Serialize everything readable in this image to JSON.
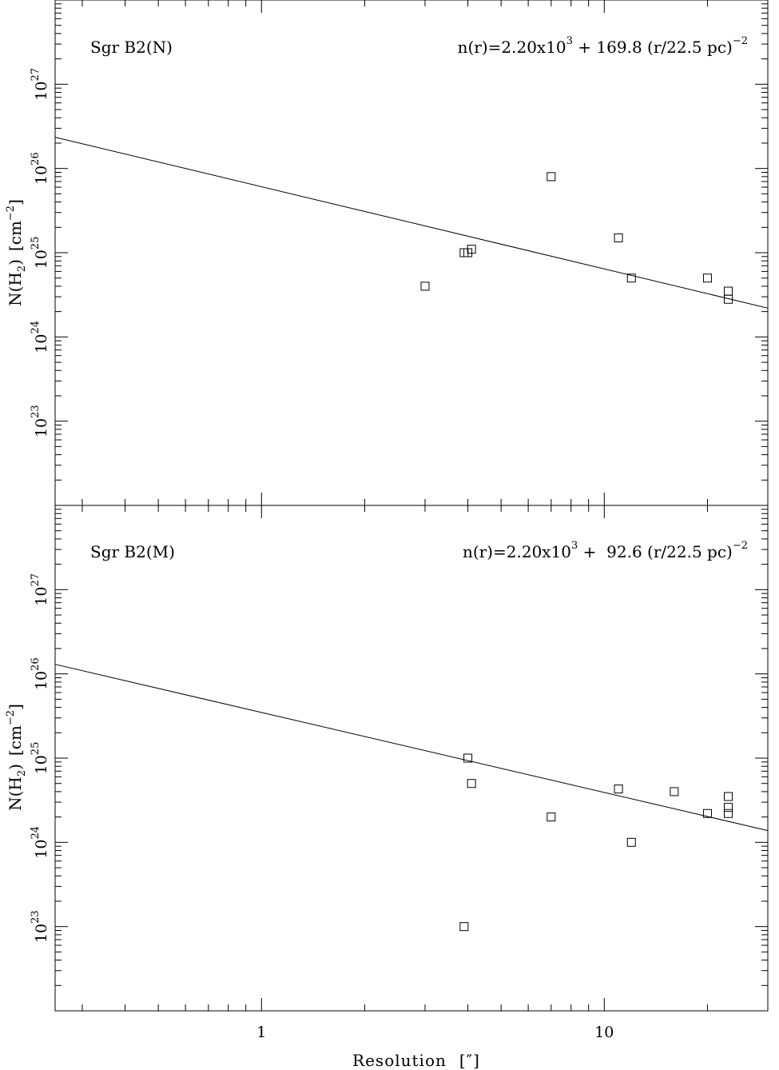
{
  "figure": {
    "xlabel": "Resolution",
    "xlabel_unit": "[″]",
    "ylabel_main": "N(H",
    "ylabel_sub": "2",
    "ylabel_close": ")",
    "ylabel_unit": "[cm",
    "ylabel_unit_sup": "−2",
    "ylabel_unit_close": "]"
  },
  "chart_data": [
    {
      "type": "scatter",
      "panel": "top",
      "label": "Sgr B2(N)",
      "formula": {
        "prefix": "n(r)=2.20x10",
        "exp1": "3",
        "middle": " + 169.8 (r/22.5 pc)",
        "exp2": "−2"
      },
      "x_scale": "log",
      "y_scale": "log",
      "xlim": [
        0.25,
        30
      ],
      "ylim": [
        1e+22,
        1e+28
      ],
      "x_ticks": [
        {
          "value": 1,
          "label": "1"
        },
        {
          "value": 10,
          "label": "10"
        }
      ],
      "y_ticks": [
        {
          "value": 1e+23,
          "base": "10",
          "exp": "23"
        },
        {
          "value": 1e+24,
          "base": "10",
          "exp": "24"
        },
        {
          "value": 1e+25,
          "base": "10",
          "exp": "25"
        },
        {
          "value": 1e+26,
          "base": "10",
          "exp": "26"
        },
        {
          "value": 1e+27,
          "base": "10",
          "exp": "27"
        }
      ],
      "points": [
        {
          "x": 3.0,
          "y": 4e+24
        },
        {
          "x": 3.9,
          "y": 1e+25
        },
        {
          "x": 4.0,
          "y": 1e+25
        },
        {
          "x": 4.1,
          "y": 1.1e+25
        },
        {
          "x": 7.0,
          "y": 8e+25
        },
        {
          "x": 11.0,
          "y": 1.5e+25
        },
        {
          "x": 12.0,
          "y": 5e+24
        },
        {
          "x": 20.0,
          "y": 5e+24
        },
        {
          "x": 23.0,
          "y": 3.5e+24
        },
        {
          "x": 23.0,
          "y": 2.8e+24
        }
      ],
      "fit_line": [
        {
          "x": 0.25,
          "y": 2.35e+26
        },
        {
          "x": 30,
          "y": 2.2e+24
        }
      ]
    },
    {
      "type": "scatter",
      "panel": "bottom",
      "label": "Sgr B2(M)",
      "formula": {
        "prefix": "n(r)=2.20x10",
        "exp1": "3",
        "middle": " +  92.6 (r/22.5 pc)",
        "exp2": "−2"
      },
      "x_scale": "log",
      "y_scale": "log",
      "xlim": [
        0.25,
        30
      ],
      "ylim": [
        1e+22,
        1e+28
      ],
      "x_ticks": [
        {
          "value": 1,
          "label": "1"
        },
        {
          "value": 10,
          "label": "10"
        }
      ],
      "y_ticks": [
        {
          "value": 1e+23,
          "base": "10",
          "exp": "23"
        },
        {
          "value": 1e+24,
          "base": "10",
          "exp": "24"
        },
        {
          "value": 1e+25,
          "base": "10",
          "exp": "25"
        },
        {
          "value": 1e+26,
          "base": "10",
          "exp": "26"
        },
        {
          "value": 1e+27,
          "base": "10",
          "exp": "27"
        }
      ],
      "points": [
        {
          "x": 3.9,
          "y": 1e+23
        },
        {
          "x": 4.0,
          "y": 1e+25
        },
        {
          "x": 4.1,
          "y": 5e+24
        },
        {
          "x": 7.0,
          "y": 2e+24
        },
        {
          "x": 11.0,
          "y": 4.3e+24
        },
        {
          "x": 12.0,
          "y": 1e+24
        },
        {
          "x": 16.0,
          "y": 4e+24
        },
        {
          "x": 20.0,
          "y": 2.2e+24
        },
        {
          "x": 23.0,
          "y": 3.5e+24
        },
        {
          "x": 23.0,
          "y": 2.6e+24
        },
        {
          "x": 23.0,
          "y": 2.2e+24
        }
      ],
      "fit_line": [
        {
          "x": 0.25,
          "y": 1.3e+26
        },
        {
          "x": 30,
          "y": 1.38e+24
        }
      ]
    }
  ]
}
